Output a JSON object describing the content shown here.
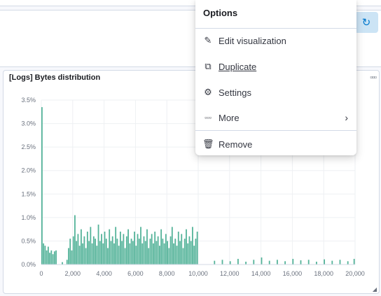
{
  "panel": {
    "title": "[Logs] Bytes distribution"
  },
  "menu": {
    "title": "Options",
    "items": [
      {
        "label": "Edit visualization",
        "icon": "pencil-icon"
      },
      {
        "label": "Duplicate",
        "icon": "copy-icon"
      },
      {
        "label": "Settings",
        "icon": "gear-icon"
      },
      {
        "label": "More",
        "icon": "ellipsis-icon"
      },
      {
        "label": "Remove",
        "icon": "trash-icon"
      }
    ]
  },
  "chart_data": {
    "type": "bar",
    "title": "[Logs] Bytes distribution",
    "xlim": [
      0,
      20000
    ],
    "ylim": [
      0,
      3.5
    ],
    "x_ticks": [
      "0",
      "2,000",
      "4,000",
      "6,000",
      "8,000",
      "10,000",
      "12,000",
      "14,000",
      "16,000",
      "18,000",
      "20,000"
    ],
    "y_ticks": [
      "0.0%",
      "0.5%",
      "1.0%",
      "1.5%",
      "2.0%",
      "2.5%",
      "3.0%",
      "3.5%"
    ],
    "grid": true,
    "bar_color": "#54b399",
    "bin_size": 100,
    "x": [
      0,
      100,
      200,
      300,
      400,
      500,
      600,
      700,
      800,
      900,
      1000,
      1100,
      1200,
      1300,
      1400,
      1500,
      1600,
      1700,
      1800,
      1900,
      2000,
      2100,
      2200,
      2300,
      2400,
      2500,
      2600,
      2700,
      2800,
      2900,
      3000,
      3100,
      3200,
      3300,
      3400,
      3500,
      3600,
      3700,
      3800,
      3900,
      4000,
      4100,
      4200,
      4300,
      4400,
      4500,
      4600,
      4700,
      4800,
      4900,
      5000,
      5100,
      5200,
      5300,
      5400,
      5500,
      5600,
      5700,
      5800,
      5900,
      6000,
      6100,
      6200,
      6300,
      6400,
      6500,
      6600,
      6700,
      6800,
      6900,
      7000,
      7100,
      7200,
      7300,
      7400,
      7500,
      7600,
      7700,
      7800,
      7900,
      8000,
      8100,
      8200,
      8300,
      8400,
      8500,
      8600,
      8700,
      8800,
      8900,
      9000,
      9100,
      9200,
      9300,
      9400,
      9500,
      9600,
      9700,
      9800,
      9900,
      11000,
      11500,
      12000,
      12500,
      13000,
      13500,
      14000,
      14500,
      15000,
      15500,
      16000,
      16500,
      17000,
      17500,
      18000,
      18500,
      19000,
      19500,
      19900
    ],
    "values": [
      3.35,
      0.45,
      0.4,
      0.3,
      0.38,
      0.25,
      0.3,
      0.22,
      0.28,
      0.3,
      0.0,
      0.0,
      0.0,
      0.05,
      0.0,
      0.0,
      0.1,
      0.35,
      0.55,
      0.3,
      0.6,
      1.05,
      0.5,
      0.65,
      0.4,
      0.75,
      0.45,
      0.6,
      0.35,
      0.7,
      0.5,
      0.8,
      0.45,
      0.6,
      0.55,
      0.4,
      0.85,
      0.5,
      0.65,
      0.45,
      0.7,
      0.55,
      0.35,
      0.75,
      0.5,
      0.6,
      0.45,
      0.8,
      0.55,
      0.4,
      0.7,
      0.5,
      0.65,
      0.35,
      0.6,
      0.75,
      0.45,
      0.55,
      0.5,
      0.7,
      0.4,
      0.65,
      0.55,
      0.8,
      0.45,
      0.6,
      0.5,
      0.75,
      0.35,
      0.55,
      0.65,
      0.45,
      0.7,
      0.5,
      0.6,
      0.4,
      0.75,
      0.55,
      0.45,
      0.65,
      0.5,
      0.35,
      0.6,
      0.8,
      0.45,
      0.55,
      0.4,
      0.7,
      0.5,
      0.65,
      0.35,
      0.55,
      0.75,
      0.45,
      0.6,
      0.5,
      0.8,
      0.4,
      0.55,
      0.7,
      0.08,
      0.1,
      0.07,
      0.12,
      0.06,
      0.1,
      0.15,
      0.08,
      0.1,
      0.07,
      0.12,
      0.09,
      0.1,
      0.06,
      0.11,
      0.08,
      0.1,
      0.07,
      0.12
    ]
  }
}
